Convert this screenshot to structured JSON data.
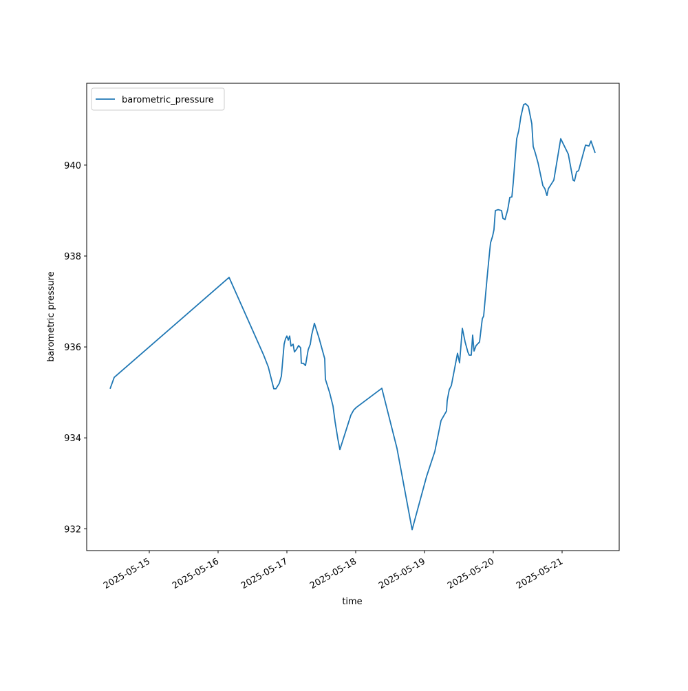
{
  "chart_data": {
    "type": "line",
    "xlabel": "time",
    "ylabel": "barometric pressure",
    "x": [
      "2025-05-14 10:20",
      "2025-05-14 11:46",
      "2025-05-16 03:50",
      "2025-05-16 15:50",
      "2025-05-16 17:31",
      "2025-05-16 19:26",
      "2025-05-16 20:10",
      "2025-05-16 21:22",
      "2025-05-16 22:05",
      "2025-05-16 23:02",
      "2025-05-16 23:31",
      "2025-05-17 00:00",
      "2025-05-17 00:29",
      "2025-05-17 00:58",
      "2025-05-17 01:26",
      "2025-05-17 02:10",
      "2025-05-17 02:38",
      "2025-05-17 03:22",
      "2025-05-17 04:05",
      "2025-05-17 04:48",
      "2025-05-17 05:02",
      "2025-05-17 05:46",
      "2025-05-17 06:29",
      "2025-05-17 07:26",
      "2025-05-17 08:10",
      "2025-05-17 08:38",
      "2025-05-17 09:36",
      "2025-05-17 11:17",
      "2025-05-17 13:12",
      "2025-05-17 13:26",
      "2025-05-17 14:53",
      "2025-05-17 16:05",
      "2025-05-17 16:48",
      "2025-05-17 17:46",
      "2025-05-17 18:29",
      "2025-05-17 22:19",
      "2025-05-17 23:17",
      "2025-05-18 00:14",
      "2025-05-18 09:07",
      "2025-05-18 14:24",
      "2025-05-18 19:41",
      "2025-05-19 00:43",
      "2025-05-19 03:36",
      "2025-05-19 05:46",
      "2025-05-19 07:41",
      "2025-05-19 07:55",
      "2025-05-19 08:38",
      "2025-05-19 09:22",
      "2025-05-19 11:31",
      "2025-05-19 12:14",
      "2025-05-19 13:12",
      "2025-05-19 14:10",
      "2025-05-19 15:07",
      "2025-05-19 15:36",
      "2025-05-19 16:19",
      "2025-05-19 16:48",
      "2025-05-19 17:17",
      "2025-05-19 18:00",
      "2025-05-19 19:12",
      "2025-05-19 20:10",
      "2025-05-19 20:38",
      "2025-05-19 21:50",
      "2025-05-19 22:34",
      "2025-05-19 23:02",
      "2025-05-19 23:46",
      "2025-05-20 00:14",
      "2025-05-20 00:43",
      "2025-05-20 01:41",
      "2025-05-20 02:53",
      "2025-05-20 03:22",
      "2025-05-20 04:05",
      "2025-05-20 05:02",
      "2025-05-20 05:46",
      "2025-05-20 06:29",
      "2025-05-20 06:58",
      "2025-05-20 07:41",
      "2025-05-20 08:10",
      "2025-05-20 08:53",
      "2025-05-20 09:36",
      "2025-05-20 10:34",
      "2025-05-20 11:17",
      "2025-05-20 12:14",
      "2025-05-20 13:26",
      "2025-05-20 13:55",
      "2025-05-20 14:38",
      "2025-05-20 15:36",
      "2025-05-20 17:17",
      "2025-05-20 18:00",
      "2025-05-20 18:43",
      "2025-05-20 19:12",
      "2025-05-20 21:07",
      "2025-05-20 23:31",
      "2025-05-21 02:10",
      "2025-05-21 03:50",
      "2025-05-21 04:19",
      "2025-05-21 05:02",
      "2025-05-21 05:46",
      "2025-05-21 08:10",
      "2025-05-21 09:22",
      "2025-05-21 10:05",
      "2025-05-21 11:31"
    ],
    "series": [
      {
        "name": "barometric_pressure",
        "color": "#1f77b4",
        "values": [
          935.08,
          935.33,
          937.53,
          935.83,
          935.56,
          935.08,
          935.08,
          935.2,
          935.36,
          936.06,
          936.18,
          936.24,
          936.15,
          936.24,
          936.02,
          936.06,
          935.89,
          935.95,
          936.03,
          935.98,
          935.64,
          935.64,
          935.59,
          935.94,
          936.06,
          936.26,
          936.52,
          936.18,
          935.74,
          935.29,
          935.0,
          934.7,
          934.36,
          933.98,
          933.74,
          934.5,
          934.61,
          934.67,
          935.09,
          933.77,
          931.98,
          933.15,
          933.7,
          934.38,
          934.59,
          934.82,
          935.06,
          935.15,
          935.86,
          935.65,
          936.41,
          936.11,
          935.89,
          935.82,
          935.82,
          936.26,
          935.91,
          936.03,
          936.11,
          936.62,
          936.68,
          937.52,
          938.0,
          938.29,
          938.44,
          938.58,
          939.0,
          939.02,
          939.0,
          938.83,
          938.8,
          939.02,
          939.29,
          939.3,
          939.62,
          940.2,
          940.58,
          940.76,
          941.06,
          941.33,
          941.35,
          941.29,
          940.91,
          940.41,
          940.27,
          940.05,
          939.55,
          939.48,
          939.33,
          939.48,
          939.67,
          940.58,
          940.24,
          939.67,
          939.65,
          939.85,
          939.88,
          940.44,
          940.42,
          940.53,
          940.27
        ]
      }
    ],
    "xlim": [
      "2025-05-14 02:10",
      "2025-05-21 19:55"
    ],
    "xticks": [
      "2025-05-15",
      "2025-05-16",
      "2025-05-17",
      "2025-05-18",
      "2025-05-19",
      "2025-05-20",
      "2025-05-21"
    ],
    "ylim": [
      931.52,
      941.8
    ],
    "yticks": [
      932,
      934,
      936,
      938,
      940
    ],
    "grid": false,
    "legend": "upper left"
  }
}
